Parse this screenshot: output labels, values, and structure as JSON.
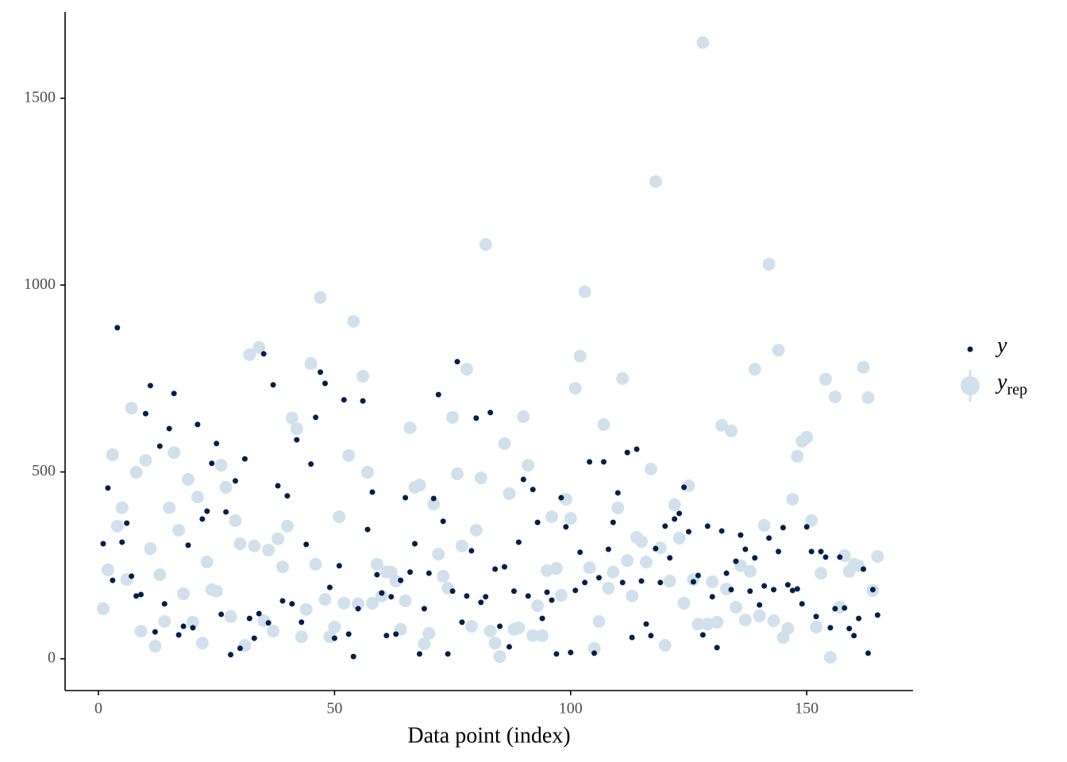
{
  "chart_data": {
    "type": "scatter",
    "x_label": "Data point (index)",
    "x": [
      1,
      2,
      3,
      4,
      5,
      6,
      7,
      8,
      9,
      10,
      11,
      12,
      13,
      14,
      15,
      16,
      17,
      18,
      19,
      20,
      21,
      22,
      23,
      24,
      25,
      26,
      27,
      28,
      29,
      30,
      31,
      32,
      33,
      34,
      35,
      36,
      37,
      38,
      39,
      40,
      41,
      42,
      43,
      44,
      45,
      46,
      47,
      48,
      49,
      50,
      51,
      52,
      53,
      54,
      55,
      56,
      57,
      58,
      59,
      60,
      61,
      62,
      63,
      64,
      65,
      66,
      67,
      68,
      69,
      70,
      71,
      72,
      73,
      74,
      75,
      76,
      77,
      78,
      79,
      80,
      81,
      82,
      83,
      84,
      85,
      86,
      87,
      88,
      89,
      90,
      91,
      92,
      93,
      94,
      95,
      96,
      97,
      98,
      99,
      100,
      101,
      102,
      103,
      104,
      105,
      106,
      107,
      108,
      109,
      110,
      111,
      112,
      113,
      114,
      115,
      116,
      117,
      118,
      119,
      120,
      121,
      122,
      123,
      124,
      125,
      126,
      127,
      128,
      129,
      130,
      131,
      132,
      133,
      134,
      135,
      136,
      137,
      138,
      139,
      140,
      141,
      142,
      143,
      144,
      145,
      146,
      147,
      148,
      149,
      150,
      151,
      152,
      153,
      154,
      155,
      156,
      157,
      158,
      159,
      160,
      161,
      162,
      163,
      164,
      165
    ],
    "series": [
      {
        "name": "yrep",
        "color": "#d1e1ec",
        "values": [
          134,
          238,
          546,
          355,
          404,
          212,
          671,
          499,
          74,
          531,
          295,
          34,
          225,
          100,
          404,
          552,
          344,
          174,
          480,
          98,
          433,
          42,
          259,
          185,
          181,
          518,
          459,
          113,
          370,
          308,
          36,
          814,
          302,
          833,
          102,
          291,
          74,
          321,
          246,
          355,
          644,
          616,
          59,
          132,
          790,
          253,
          967,
          159,
          59,
          85,
          380,
          149,
          544,
          903,
          147,
          756,
          499,
          149,
          253,
          168,
          232,
          232,
          208,
          79,
          155,
          618,
          459,
          465,
          40,
          68,
          414,
          280,
          221,
          189,
          646,
          495,
          302,
          775,
          87,
          344,
          484,
          1109,
          74,
          42,
          6,
          576,
          442,
          79,
          83,
          648,
          518,
          62,
          142,
          62,
          236,
          380,
          242,
          170,
          427,
          376,
          724,
          810,
          982,
          244,
          28,
          100,
          627,
          189,
          232,
          404,
          750,
          263,
          168,
          325,
          314,
          259,
          508,
          1277,
          297,
          36,
          208,
          412,
          323,
          149,
          463,
          212,
          93,
          1649,
          93,
          206,
          98,
          625,
          187,
          610,
          138,
          249,
          104,
          234,
          775,
          115,
          357,
          1056,
          102,
          826,
          57,
          81,
          427,
          542,
          582,
          593,
          370,
          85,
          229,
          748,
          4,
          701,
          138,
          276,
          234,
          253,
          249,
          780,
          699,
          183,
          274
        ]
      },
      {
        "name": "y",
        "color": "#011f4b",
        "values": [
          308,
          457,
          210,
          886,
          312,
          363,
          221,
          168,
          172,
          656,
          731,
          72,
          569,
          147,
          616,
          710,
          64,
          87,
          304,
          83,
          627,
          374,
          395,
          523,
          576,
          119,
          393,
          11,
          476,
          28,
          535,
          108,
          55,
          121,
          816,
          96,
          733,
          463,
          155,
          436,
          147,
          586,
          98,
          306,
          521,
          646,
          767,
          737,
          191,
          55,
          249,
          693,
          66,
          6,
          134,
          690,
          346,
          446,
          225,
          176,
          62,
          166,
          66,
          210,
          431,
          232,
          308,
          13,
          134,
          229,
          429,
          707,
          368,
          13,
          181,
          795,
          98,
          168,
          289,
          644,
          151,
          166,
          659,
          240,
          87,
          246,
          32,
          181,
          312,
          480,
          168,
          453,
          365,
          108,
          178,
          157,
          13,
          431,
          353,
          17,
          183,
          285,
          204,
          527,
          15,
          217,
          527,
          293,
          365,
          444,
          204,
          552,
          57,
          561,
          208,
          93,
          62,
          295,
          204,
          355,
          270,
          374,
          389,
          459,
          340,
          206,
          223,
          64,
          355,
          166,
          30,
          342,
          229,
          185,
          261,
          331,
          293,
          181,
          270,
          144,
          195,
          323,
          185,
          287,
          351,
          198,
          183,
          187,
          147,
          353,
          287,
          113,
          287,
          272,
          83,
          134,
          272,
          136,
          81,
          62,
          108,
          240,
          15,
          185,
          117
        ]
      }
    ],
    "xlim": [
      -7.06,
      172.5
    ],
    "xticks": [
      0,
      50,
      100,
      150
    ],
    "ylim": [
      -85,
      1731
    ],
    "yticks": [
      0,
      500,
      1000,
      1500
    ],
    "grid": false,
    "legend": "right"
  }
}
